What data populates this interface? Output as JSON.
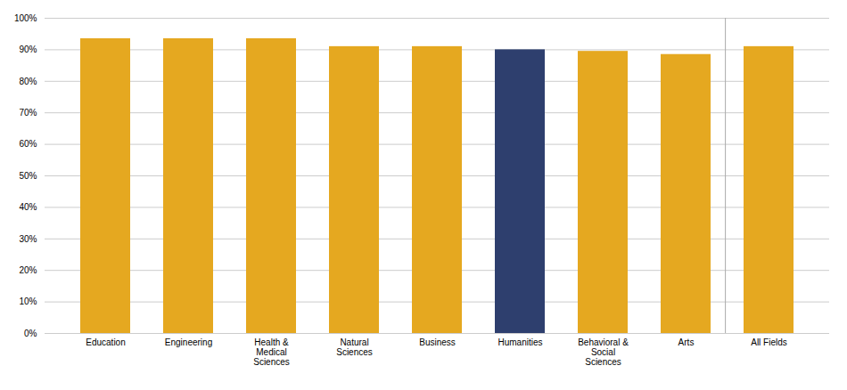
{
  "chart_data": {
    "type": "bar",
    "categories": [
      "Education",
      "Engineering",
      "Health &\nMedical\nSciences",
      "Natural\nSciences",
      "Business",
      "Humanities",
      "Behavioral &\nSocial\nSciences",
      "Arts",
      "All Fields"
    ],
    "values": [
      93.5,
      93.5,
      93.5,
      91.0,
      91.0,
      90.0,
      89.5,
      88.5,
      91.0
    ],
    "colors": [
      "#E5A820",
      "#E5A820",
      "#E5A820",
      "#E5A820",
      "#E5A820",
      "#2E3F6E",
      "#E5A820",
      "#E5A820",
      "#E5A820"
    ],
    "ylim": [
      0,
      100
    ],
    "yticks": [
      {
        "value": 0,
        "label": "0%"
      },
      {
        "value": 10,
        "label": "10%"
      },
      {
        "value": 20,
        "label": "20%"
      },
      {
        "value": 30,
        "label": "30%"
      },
      {
        "value": 40,
        "label": "40%"
      },
      {
        "value": 50,
        "label": "50%"
      },
      {
        "value": 60,
        "label": "60%"
      },
      {
        "value": 70,
        "label": "70%"
      },
      {
        "value": 80,
        "label": "80%"
      },
      {
        "value": 90,
        "label": "90%"
      },
      {
        "value": 100,
        "label": "100%"
      }
    ],
    "grid": true
  }
}
